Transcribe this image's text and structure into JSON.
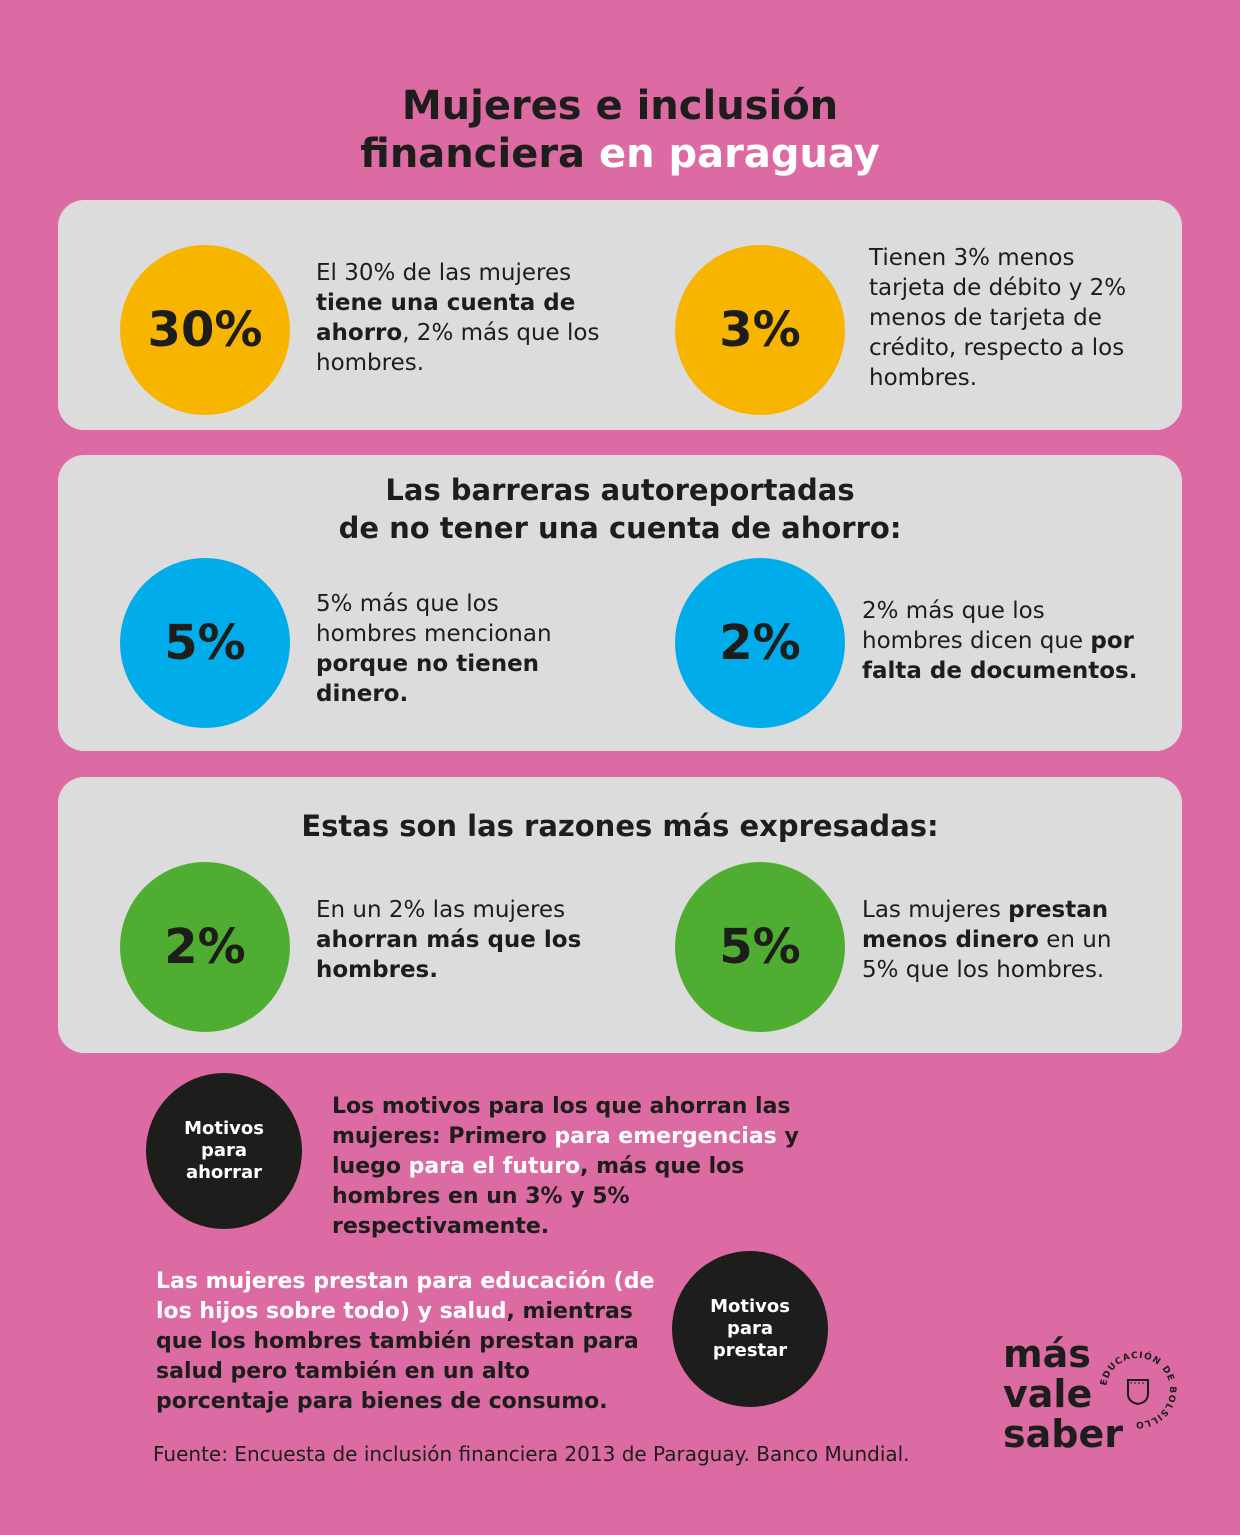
{
  "title": {
    "line1": "Mujeres e inclusión",
    "line2_dark": "financiera",
    "line2_highlight": "en paraguay"
  },
  "panel1": {
    "left": {
      "value": "30%",
      "text_1": "El 30% de las mujeres ",
      "bold_1": "tiene una cuenta de ahorro",
      "text_2": ", 2% más que los hombres."
    },
    "right": {
      "value": "3%",
      "text_1": "Tienen 3% menos tarjeta de débito y 2% menos de tarjeta de crédito, respecto a los hombres."
    }
  },
  "panel2": {
    "title_line1": "Las barreras autoreportadas",
    "title_line2": "de no tener una cuenta de ahorro:",
    "left": {
      "value": "5%",
      "text_1": "5% más que los hombres mencionan ",
      "bold_1": "porque no tienen dinero."
    },
    "right": {
      "value": "2%",
      "text_1": "2% más que los hombres dicen que ",
      "bold_1": "por falta de documentos."
    }
  },
  "panel3": {
    "title": "Estas son las razones más expresadas:",
    "left": {
      "value": "2%",
      "text_1": "En un 2% las mujeres ",
      "bold_1": "ahorran más que los hombres."
    },
    "right": {
      "value": "5%",
      "text_1": "Las mujeres ",
      "bold_1": "prestan menos dinero",
      "text_2": " en un 5% que los hombres."
    }
  },
  "motive_save": {
    "circle_label": "Motivos para ahorrar",
    "text_1": "Los motivos para los que ahorran las mujeres: Primero ",
    "hl_1": "para emergencias",
    "text_2": " y luego ",
    "hl_2": "para el futuro",
    "text_3": ", más que los hombres en un 3% y 5% respectivamente."
  },
  "motive_lend": {
    "circle_label": "Motivos para prestar",
    "hl_1": "Las mujeres prestan para educación (de los hijos sobre todo) y salud",
    "text_1": ", mientras que los hombres también prestan para salud pero también en un alto porcentaje para bienes de consumo."
  },
  "source": "Fuente: Encuesta de inclusión financiera 2013 de Paraguay. Banco Mundial.",
  "logo": {
    "line1": "más",
    "line2": "vale",
    "line3": "saber",
    "seal_text": "EDUCACIÓN DE BOLSILLO",
    "icon": "pocket-icon"
  },
  "colors": {
    "background": "#dc6ba4",
    "panel": "#dcdcdc",
    "yellow": "#f7b500",
    "blue": "#00adea",
    "green": "#4fad32",
    "dark": "#1d1d1b"
  }
}
